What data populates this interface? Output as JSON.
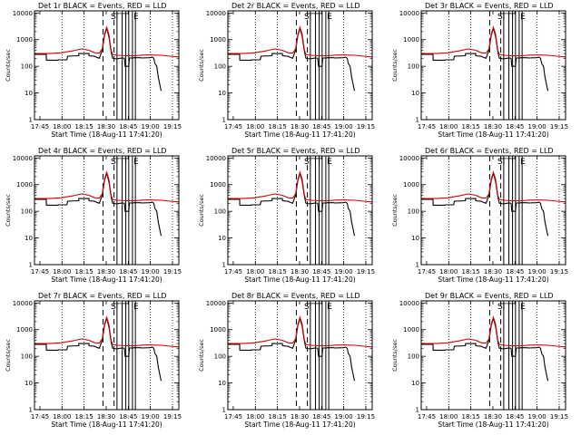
{
  "figure": {
    "panels": [
      {
        "title": "Det 1r BLACK = Events, RED = LLD"
      },
      {
        "title": "Det 2r BLACK = Events, RED = LLD"
      },
      {
        "title": "Det 3r BLACK = Events, RED = LLD"
      },
      {
        "title": "Det 4r BLACK = Events, RED = LLD"
      },
      {
        "title": "Det 5r BLACK = Events, RED = LLD"
      },
      {
        "title": "Det 6r BLACK = Events, RED = LLD"
      },
      {
        "title": "Det 7r BLACK = Events, RED = LLD"
      },
      {
        "title": "Det 8r BLACK = Events, RED = LLD"
      },
      {
        "title": "Det 9r BLACK = Events, RED = LLD"
      }
    ],
    "xlabel": "Start Time (18-Aug-11 17:41:20)",
    "ylabel": "Counts/sec",
    "xticklabels": [
      "17:45",
      "18:00",
      "18:15",
      "18:30",
      "18:45",
      "19:00",
      "19:15"
    ],
    "yticklabels": [
      "1",
      "10",
      "100",
      "1000",
      "10000"
    ],
    "markers": [
      "S",
      "T",
      "T",
      "T",
      "E"
    ],
    "colors": {
      "events": "#000000",
      "lld": "#dd0000",
      "axes": "#000000",
      "background": "#ffffff"
    }
  },
  "chart_data": {
    "type": "line",
    "scale": "log-y",
    "x_unit": "minutes after 17:41:20",
    "xlim": [
      0,
      98
    ],
    "ylim": [
      1,
      12000
    ],
    "xticks": [
      3.67,
      18.67,
      33.67,
      48.67,
      63.67,
      78.67,
      93.67
    ],
    "dotted_vlines": [
      18.67,
      33.67,
      78.67,
      93.67
    ],
    "dashed_vlines": [
      46.5,
      54
    ],
    "solid_vlines": [
      56,
      59.5,
      62,
      64,
      66.5,
      68.5
    ],
    "marker_x": [
      53.5,
      56,
      59.5,
      62,
      69
    ],
    "series": [
      {
        "name": "Events",
        "x": [
          0,
          8,
          8.1,
          16,
          16.1,
          22,
          22.5,
          30,
          30.1,
          37,
          37.1,
          41,
          42,
          44,
          46,
          47.5,
          49,
          50.5,
          52,
          53,
          56,
          58,
          60,
          61,
          61.5,
          64,
          64.5,
          67,
          67.5,
          72,
          72.5,
          78,
          79,
          80,
          81,
          81.5,
          82,
          82.5,
          83,
          84,
          86
        ],
        "y": [
          280,
          280,
          170,
          170,
          175,
          175,
          240,
          250,
          300,
          300,
          250,
          235,
          220,
          200,
          400,
          1400,
          2700,
          1300,
          350,
          200,
          190,
          200,
          205,
          200,
          100,
          100,
          205,
          205,
          210,
          210,
          205,
          210,
          215,
          220,
          200,
          150,
          120,
          110,
          100,
          40,
          12
        ]
      },
      {
        "name": "LLD",
        "x": [
          0,
          10,
          18,
          26,
          32,
          37,
          41,
          44,
          46,
          47.5,
          49,
          50.5,
          52,
          53,
          56,
          62,
          68,
          74,
          80,
          86,
          92,
          98
        ],
        "y": [
          300,
          300,
          320,
          380,
          450,
          400,
          320,
          310,
          450,
          1600,
          2900,
          1600,
          400,
          280,
          260,
          250,
          250,
          265,
          265,
          260,
          240,
          225
        ]
      }
    ]
  }
}
